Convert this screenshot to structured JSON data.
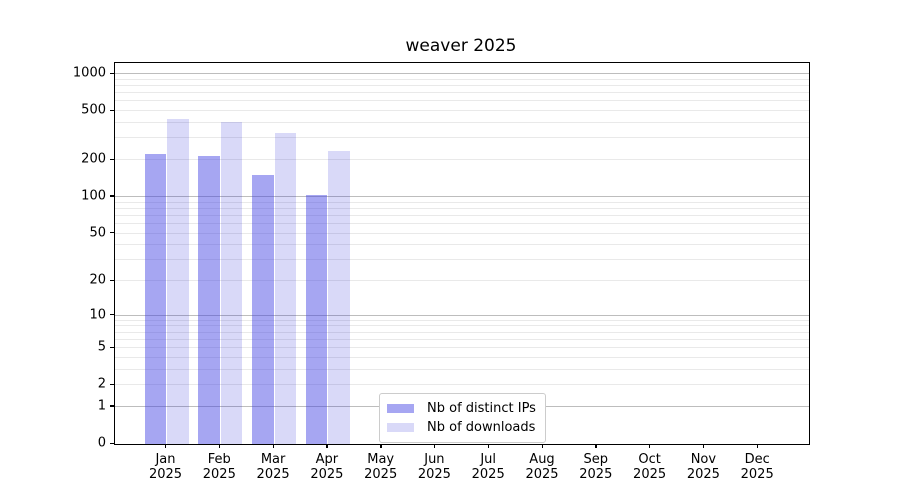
{
  "chart_data": {
    "type": "bar",
    "title": "weaver 2025",
    "months": [
      "Jan",
      "Feb",
      "Mar",
      "Apr",
      "May",
      "Jun",
      "Jul",
      "Aug",
      "Sep",
      "Oct",
      "Nov",
      "Dec"
    ],
    "year": "2025",
    "series": [
      {
        "name": "Nb of distinct IPs",
        "color": "#a6a6f2",
        "fill": "rgba(57,57,226,0.45)",
        "values": [
          225,
          215,
          150,
          103,
          0,
          0,
          0,
          0,
          0,
          0,
          0,
          0
        ]
      },
      {
        "name": "Nb of downloads",
        "color": "#d9d9f8",
        "fill": "rgba(17,17,211,0.16)",
        "values": [
          435,
          410,
          332,
          235,
          0,
          0,
          0,
          0,
          0,
          0,
          0,
          0
        ]
      }
    ],
    "y_ticks": [
      0,
      1,
      2,
      5,
      10,
      20,
      50,
      100,
      200,
      500,
      1000
    ],
    "y_scale": "log10(1+y)",
    "ylim": [
      0,
      1230
    ],
    "grid": {
      "major": [
        1,
        10,
        100,
        1000
      ],
      "minor": [
        2,
        3,
        4,
        5,
        6,
        7,
        8,
        9,
        20,
        30,
        40,
        50,
        60,
        70,
        80,
        90,
        200,
        300,
        400,
        500,
        600,
        700,
        800,
        900
      ]
    },
    "legend_position": "inside-lower-center",
    "grid_colors": {
      "major": "#bdbdbd",
      "minor": "#e9e9e9"
    }
  }
}
